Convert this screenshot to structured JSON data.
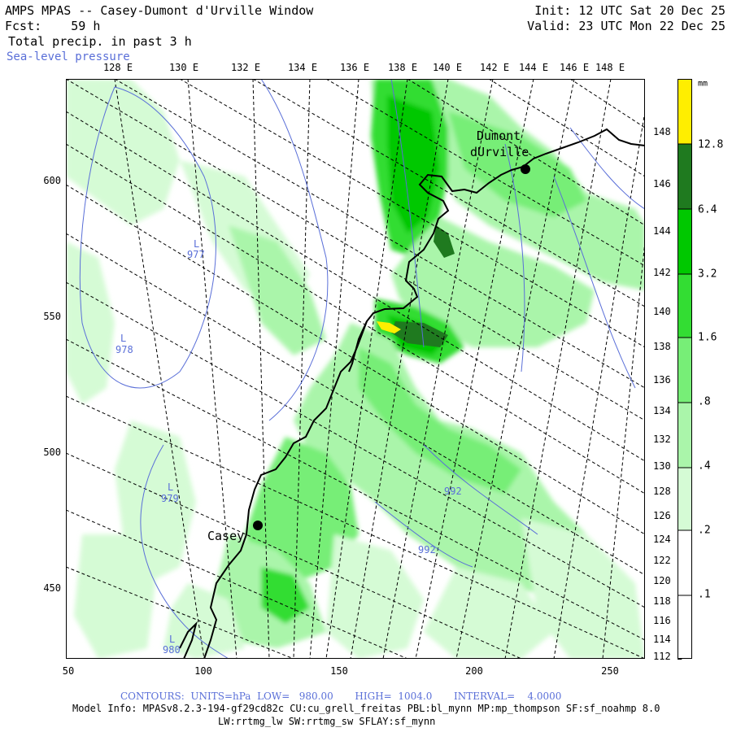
{
  "header": {
    "title": "AMPS MPAS -- Casey-Dumont d'Urville Window",
    "forecast": "Fcst:    59 h",
    "field": "Total precip. in past 3 h",
    "overlay": "Sea-level pressure",
    "init": "Init: 12 UTC Sat 20 Dec 25",
    "valid": "Valid: 23 UTC Mon 22 Dec 25"
  },
  "axes": {
    "top_lon_labels": [
      "128 E",
      "130 E",
      "132 E",
      "134 E",
      "136 E",
      "138 E",
      "140 E",
      "142 E",
      "144 E",
      "146 E",
      "148 E"
    ],
    "left_labels": [
      "600",
      "550",
      "500",
      "450"
    ],
    "bottom_labels": [
      "50",
      "100",
      "150",
      "200",
      "250"
    ],
    "right_lon_labels": [
      "148 E",
      "146 E",
      "144 E",
      "142 E",
      "140 E",
      "138 E",
      "136 E",
      "134 E",
      "132 E",
      "130 E",
      "128 E",
      "126 E",
      "124 E",
      "122 E",
      "120 E",
      "118 E",
      "116 E",
      "114 E",
      "112 E"
    ]
  },
  "map": {
    "stations": [
      {
        "name": "Dumont",
        "name2": "dUrville"
      },
      {
        "name": "Casey"
      }
    ],
    "pressure_labels": [
      "L",
      "977",
      "L",
      "978",
      "L",
      "979",
      "L",
      "980",
      "992",
      "992"
    ]
  },
  "colorbar": {
    "unit": "mm",
    "levels": [
      "12.8",
      "6.4",
      "3.2",
      "1.6",
      ".8",
      ".4",
      ".2",
      ".1"
    ],
    "colors": [
      "#ffee00",
      "#1f7a1f",
      "#00c800",
      "#33dd33",
      "#77ee77",
      "#aaf5aa",
      "#d5fbd5",
      "#ffffff"
    ]
  },
  "footer": {
    "contours": "CONTOURS:  UNITS=hPa  LOW=   980.00       HIGH=  1004.0       INTERVAL=    4.0000",
    "model_info": "Model Info: MPASv8.2.3-194-gf29cd82c CU:cu_grell_freitas PBL:bl_mynn MP:mp_thompson SF:sf_noahmp 8.0",
    "model_info2": "LW:rrtmg_lw SW:rrtmg_sw SFLAY:sf_mynn"
  }
}
